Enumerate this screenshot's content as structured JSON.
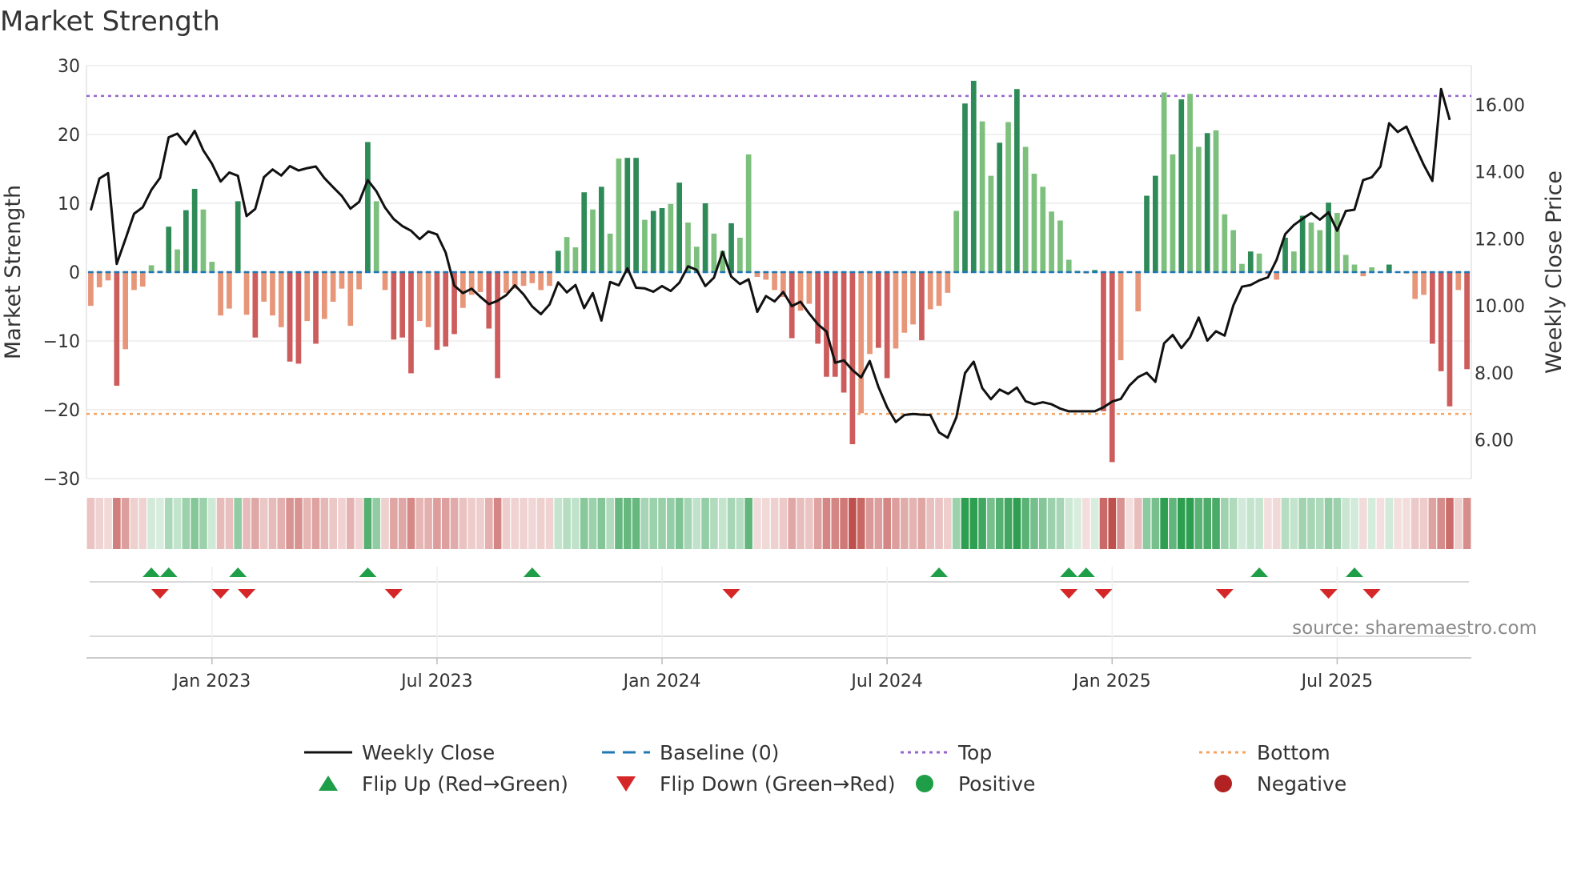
{
  "chart_data": {
    "type": "bar+line",
    "title": "Market Strength",
    "ylabel_left": "Market Strength",
    "ylabel_right": "Weekly Close Price",
    "source": "source: sharemaestro.com",
    "ylim_left": [
      -30,
      30
    ],
    "yticks_left": [
      30,
      20,
      10,
      0,
      -10,
      -20,
      -30
    ],
    "ytick_labels_left": [
      "30",
      "20",
      "10",
      "0",
      "−10",
      "−20",
      "−30"
    ],
    "ylim_right": [
      4.84,
      17.17
    ],
    "yticks_right": [
      16,
      14,
      12,
      10,
      8,
      6
    ],
    "ytick_labels_right": [
      "16.00",
      "14.00",
      "12.00",
      "10.00",
      "8.00",
      "6.00"
    ],
    "x_ticks": [
      {
        "label": "Jan 2023",
        "week": 14
      },
      {
        "label": "Jul 2023",
        "week": 40
      },
      {
        "label": "Jan 2024",
        "week": 66
      },
      {
        "label": "Jul 2024",
        "week": 92
      },
      {
        "label": "Jan 2025",
        "week": 118
      },
      {
        "label": "Jul 2025",
        "week": 144
      }
    ],
    "top_level": 25.6,
    "bottom_level": -20.6,
    "baseline": 0,
    "strength": [
      -4.9,
      -2.2,
      -1.2,
      -16.5,
      -11.2,
      -2.6,
      -2.1,
      1.0,
      0.2,
      6.6,
      3.3,
      9.0,
      12.1,
      9.1,
      1.5,
      -6.3,
      -5.3,
      10.3,
      -6.2,
      -9.5,
      -4.3,
      -6.3,
      -8.0,
      -13.0,
      -13.3,
      -7.1,
      -10.4,
      -6.8,
      -4.3,
      -2.4,
      -7.8,
      -2.5,
      18.9,
      10.3,
      -2.6,
      -9.8,
      -9.5,
      -14.7,
      -7.1,
      -8.0,
      -11.3,
      -10.8,
      -9.0,
      -5.2,
      -3.3,
      -2.9,
      -8.2,
      -15.4,
      -3.0,
      -2.4,
      -2.0,
      -1.6,
      -2.6,
      -2.0,
      3.1,
      5.1,
      3.6,
      11.6,
      9.1,
      12.4,
      5.6,
      16.5,
      16.6,
      16.6,
      7.6,
      8.9,
      9.3,
      9.9,
      13.0,
      7.2,
      3.7,
      10.0,
      5.6,
      3.1,
      7.1,
      5.0,
      17.1,
      -0.7,
      -1.1,
      -2.6,
      -3.6,
      -9.6,
      -5.6,
      -4.6,
      -10.4,
      -15.2,
      -15.2,
      -17.5,
      -25.0,
      -20.5,
      -11.9,
      -11.0,
      -15.4,
      -11.1,
      -8.8,
      -7.6,
      -9.9,
      -5.4,
      -4.9,
      -3.0,
      8.9,
      24.5,
      27.8,
      21.9,
      14.0,
      18.8,
      21.8,
      26.6,
      18.2,
      14.3,
      12.4,
      8.8,
      7.5,
      1.8,
      0.2,
      -0.2,
      0.3,
      -20.2,
      -27.6,
      -12.8,
      -0.1,
      -5.7,
      11.1,
      14.0,
      26.1,
      17.1,
      25.1,
      25.9,
      18.2,
      20.2,
      20.6,
      8.4,
      6.1,
      1.2,
      3.0,
      2.7,
      -0.3,
      -1.1,
      5.0,
      3.0,
      8.2,
      7.2,
      6.1,
      10.1,
      8.6,
      2.5,
      1.1,
      -0.6,
      0.7,
      -0.1,
      1.1,
      -0.1,
      -0.2,
      -3.9,
      -3.3,
      -10.4,
      -14.4,
      -19.5,
      -2.6,
      -14.1
    ],
    "weekly_close": [
      12.85,
      13.8,
      13.96,
      11.25,
      11.99,
      12.75,
      12.94,
      13.46,
      13.82,
      15.03,
      15.14,
      14.82,
      15.22,
      14.64,
      14.24,
      13.71,
      13.98,
      13.88,
      12.68,
      12.89,
      13.84,
      14.07,
      13.89,
      14.17,
      14.04,
      14.11,
      14.16,
      13.81,
      13.54,
      13.28,
      12.9,
      13.1,
      13.75,
      13.42,
      12.93,
      12.59,
      12.38,
      12.24,
      11.99,
      12.22,
      12.13,
      11.59,
      10.6,
      10.38,
      10.51,
      10.27,
      10.05,
      10.15,
      10.32,
      10.61,
      10.34,
      9.98,
      9.75,
      10.04,
      10.7,
      10.4,
      10.62,
      9.93,
      10.38,
      9.56,
      10.71,
      10.61,
      11.12,
      10.54,
      10.52,
      10.42,
      10.59,
      10.44,
      10.69,
      11.18,
      11.07,
      10.59,
      10.84,
      11.61,
      10.87,
      10.65,
      10.79,
      9.82,
      10.29,
      10.13,
      10.41,
      9.99,
      10.12,
      9.77,
      9.45,
      9.23,
      8.3,
      8.37,
      8.08,
      7.86,
      8.35,
      7.58,
      6.97,
      6.53,
      6.74,
      6.77,
      6.75,
      6.74,
      6.22,
      6.06,
      6.67,
      7.99,
      8.33,
      7.54,
      7.21,
      7.5,
      7.37,
      7.56,
      7.15,
      7.06,
      7.12,
      7.06,
      6.93,
      6.85,
      6.85,
      6.85,
      6.85,
      6.97,
      7.14,
      7.22,
      7.62,
      7.87,
      8.0,
      7.73,
      8.88,
      9.13,
      8.74,
      9.06,
      9.65,
      8.96,
      9.24,
      9.11,
      10.01,
      10.57,
      10.62,
      10.76,
      10.85,
      11.37,
      12.14,
      12.41,
      12.6,
      12.77,
      12.57,
      12.79,
      12.24,
      12.83,
      12.87,
      13.75,
      13.84,
      14.16,
      15.45,
      15.19,
      15.35,
      14.77,
      14.21,
      13.73,
      16.47,
      15.55
    ],
    "flip_up_weeks": [
      7,
      9,
      17,
      32,
      51,
      98,
      113,
      115,
      135,
      146
    ],
    "flip_down_weeks": [
      8,
      15,
      18,
      35,
      74,
      113,
      117,
      131,
      143,
      148
    ],
    "colors": {
      "strong_green": "#2e8b57",
      "light_green": "#7dc07d",
      "strong_red": "#cd5c5c",
      "light_red": "#e8967a",
      "line": "#111111",
      "baseline": "#1f77b4",
      "top": "#9966cc",
      "bottom": "#f4a460",
      "marker_up": "#1e9e46",
      "marker_down": "#d62728",
      "dot_positive": "#1e9e46",
      "dot_negative": "#b22222"
    },
    "legend": [
      {
        "label": "Weekly Close",
        "type": "line"
      },
      {
        "label": "Baseline (0)",
        "type": "baseline"
      },
      {
        "label": "Top",
        "type": "top"
      },
      {
        "label": "Bottom",
        "type": "bottom"
      },
      {
        "label": "Flip Up (Red→Green)",
        "type": "up"
      },
      {
        "label": "Flip Down (Green→Red)",
        "type": "down"
      },
      {
        "label": "Positive",
        "type": "positive"
      },
      {
        "label": "Negative",
        "type": "negative"
      }
    ]
  }
}
